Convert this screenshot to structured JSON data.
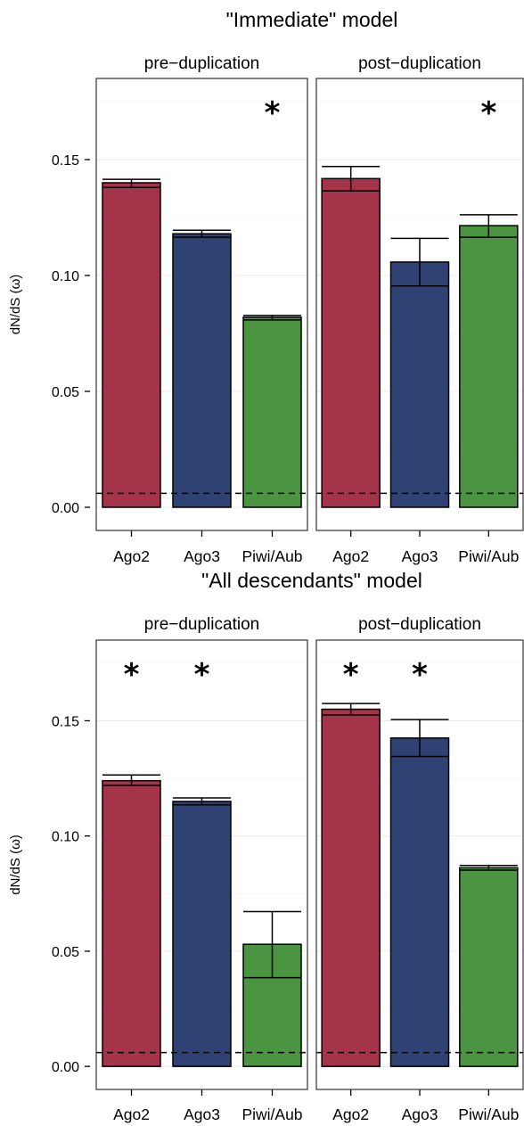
{
  "chart_data": [
    {
      "type": "bar",
      "title": "\"Immediate\" model",
      "ylabel": "dN/dS (ω)",
      "ylim": [
        -0.01,
        0.185
      ],
      "yticks": [
        "0.00",
        "0.05",
        "0.10",
        "0.15"
      ],
      "ytick_values": [
        0,
        0.05,
        0.1,
        0.15
      ],
      "reference_line": 0.006,
      "categories": [
        "Ago2",
        "Ago3",
        "Piwi/Aub"
      ],
      "colors": [
        "#a33449",
        "#2e4374",
        "#4b9442"
      ],
      "grid": true,
      "panels": [
        {
          "name": "pre−duplication",
          "values": [
            0.14,
            0.118,
            0.082
          ],
          "lower": [
            0.138,
            0.1165,
            0.0808
          ],
          "upper": [
            0.1415,
            0.1195,
            0.0828
          ],
          "significant": [
            false,
            false,
            true
          ]
        },
        {
          "name": "post−duplication",
          "values": [
            0.1418,
            0.1058,
            0.1215
          ],
          "lower": [
            0.1365,
            0.0955,
            0.1165
          ],
          "upper": [
            0.147,
            0.116,
            0.1262
          ],
          "significant": [
            false,
            false,
            true
          ]
        }
      ]
    },
    {
      "type": "bar",
      "title": "\"All descendants\" model",
      "ylabel": "dN/dS (ω)",
      "ylim": [
        -0.01,
        0.185
      ],
      "yticks": [
        "0.00",
        "0.05",
        "0.10",
        "0.15"
      ],
      "ytick_values": [
        0,
        0.05,
        0.1,
        0.15
      ],
      "reference_line": 0.006,
      "categories": [
        "Ago2",
        "Ago3",
        "Piwi/Aub"
      ],
      "colors": [
        "#a33449",
        "#2e4374",
        "#4b9442"
      ],
      "grid": true,
      "panels": [
        {
          "name": "pre−duplication",
          "values": [
            0.124,
            0.115,
            0.053
          ],
          "lower": [
            0.122,
            0.1135,
            0.0385
          ],
          "upper": [
            0.1265,
            0.1165,
            0.0672
          ],
          "significant": [
            true,
            true,
            false
          ]
        },
        {
          "name": "post−duplication",
          "values": [
            0.155,
            0.1425,
            0.0862
          ],
          "lower": [
            0.1525,
            0.1345,
            0.0852
          ],
          "upper": [
            0.1575,
            0.1505,
            0.0872
          ],
          "significant": [
            true,
            true,
            false
          ]
        }
      ]
    }
  ]
}
